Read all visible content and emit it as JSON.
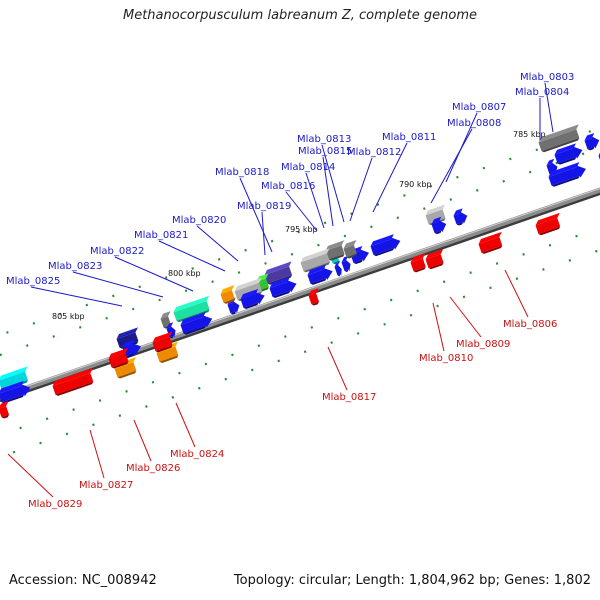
{
  "title": "Methanocorpusculum labreanum Z, complete genome",
  "footer": {
    "accession": "Accession: NC_008942",
    "summary": "Topology: circular; Length: 1,804,962 bp; Genes: 1,802"
  },
  "colors": {
    "forward_label": "#1a1acc",
    "reverse_label": "#cc1111",
    "backbone": "#8c8c8c",
    "tick": "#2e8b2e"
  },
  "ruler": [
    {
      "label": "785 kbp"
    },
    {
      "label": "790 kbp"
    },
    {
      "label": "795 kbp"
    },
    {
      "label": "800 kbp"
    },
    {
      "label": "805 kbp"
    }
  ],
  "forward_genes": [
    {
      "label": "Mlab_0803"
    },
    {
      "label": "Mlab_0804"
    },
    {
      "label": "Mlab_0807"
    },
    {
      "label": "Mlab_0808"
    },
    {
      "label": "Mlab_0811"
    },
    {
      "label": "Mlab_0812"
    },
    {
      "label": "Mlab_0813"
    },
    {
      "label": "Mlab_0815"
    },
    {
      "label": "Mlab_0814"
    },
    {
      "label": "Mlab_0816"
    },
    {
      "label": "Mlab_0818"
    },
    {
      "label": "Mlab_0819"
    },
    {
      "label": "Mlab_0820"
    },
    {
      "label": "Mlab_0821"
    },
    {
      "label": "Mlab_0822"
    },
    {
      "label": "Mlab_0823"
    },
    {
      "label": "Mlab_0825"
    }
  ],
  "reverse_genes": [
    {
      "label": "Mlab_0806"
    },
    {
      "label": "Mlab_0809"
    },
    {
      "label": "Mlab_0810"
    },
    {
      "label": "Mlab_0817"
    },
    {
      "label": "Mlab_0824"
    },
    {
      "label": "Mlab_0826"
    },
    {
      "label": "Mlab_0827"
    },
    {
      "label": "Mlab_0829"
    }
  ]
}
